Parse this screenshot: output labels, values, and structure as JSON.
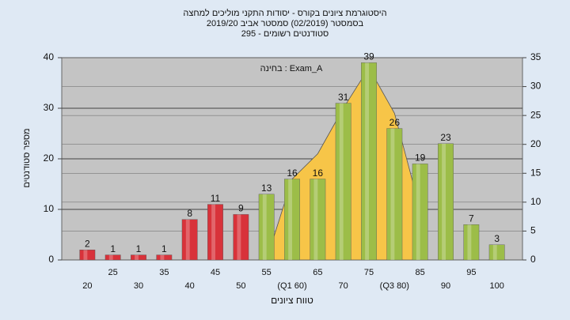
{
  "chart_data": {
    "type": "bar",
    "title": "היסטוגרמת ציונים בקורס - יסודות התקני מוליכים למחצה",
    "subtitle": "בסמסטר  (02/2019)  סמסטר אביב 2019/20",
    "subtitle2": "סטודנטים רשומים - 295",
    "annotation": "בחינה : Exam_A",
    "x_label": "טווח ציונים",
    "y_label": "מספר סטודנטים",
    "categories": [
      "20",
      "25",
      "30",
      "35",
      "40",
      "45",
      "50",
      "55",
      "(Q1 60)",
      "65",
      "70",
      "75",
      "(Q3 80)",
      "85",
      "90",
      "95",
      "100"
    ],
    "values": [
      2,
      1,
      1,
      1,
      8,
      11,
      9,
      13,
      16,
      16,
      31,
      39,
      26,
      19,
      23,
      7,
      3
    ],
    "bar_colors": [
      "#d8323a",
      "#d8323a",
      "#d8323a",
      "#d8323a",
      "#d8323a",
      "#d8323a",
      "#d8323a",
      "#9cbd48",
      "#9cbd48",
      "#9cbd48",
      "#9cbd48",
      "#9cbd48",
      "#9cbd48",
      "#9cbd48",
      "#9cbd48",
      "#9cbd48",
      "#9cbd48"
    ],
    "area": {
      "color": "#f7c548",
      "values": [
        null,
        null,
        null,
        null,
        null,
        null,
        null,
        0,
        16,
        21,
        30,
        38,
        29,
        10,
        null,
        null,
        null
      ]
    },
    "ylim": [
      0,
      40
    ],
    "yticks": [
      0,
      10,
      20,
      30,
      40
    ],
    "y2lim": [
      0,
      35
    ],
    "y2ticks": [
      0,
      5,
      10,
      15,
      20,
      25,
      30,
      35
    ],
    "grid": true
  }
}
